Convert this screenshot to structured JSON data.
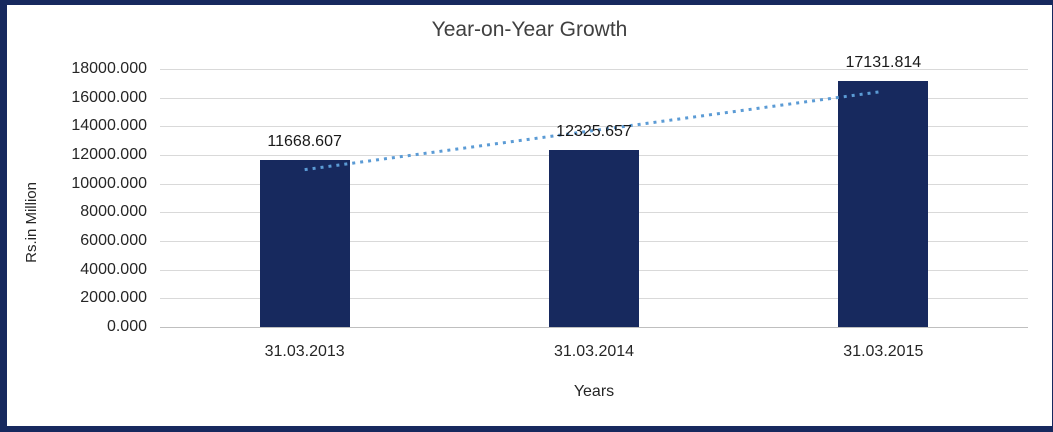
{
  "frame": {
    "border_color": "#17295E"
  },
  "chart_data": {
    "type": "bar",
    "title": "Year-on-Year Growth",
    "categories": [
      "31.03.2013",
      "31.03.2014",
      "31.03.2015"
    ],
    "values": [
      11668.607,
      12325.657,
      17131.814
    ],
    "value_labels": [
      "11668.607",
      "12325.657",
      "17131.814"
    ],
    "xlabel": "Years",
    "ylabel": "Rs.in Million",
    "ylim": [
      0,
      18000
    ],
    "yticks": [
      0,
      2000,
      4000,
      6000,
      8000,
      10000,
      12000,
      14000,
      16000,
      18000
    ],
    "ytick_labels": [
      "0.000",
      "2000.000",
      "4000.000",
      "6000.000",
      "8000.000",
      "10000.000",
      "12000.000",
      "14000.000",
      "16000.000",
      "18000.000"
    ],
    "grid": true,
    "legend": "none",
    "bar_color": "#17295E",
    "gridline_color": "#d9d9d9",
    "axis_color": "#bfbfbf",
    "trendline": {
      "type": "linear",
      "style": "dotted",
      "color": "#5B9BD5"
    }
  }
}
